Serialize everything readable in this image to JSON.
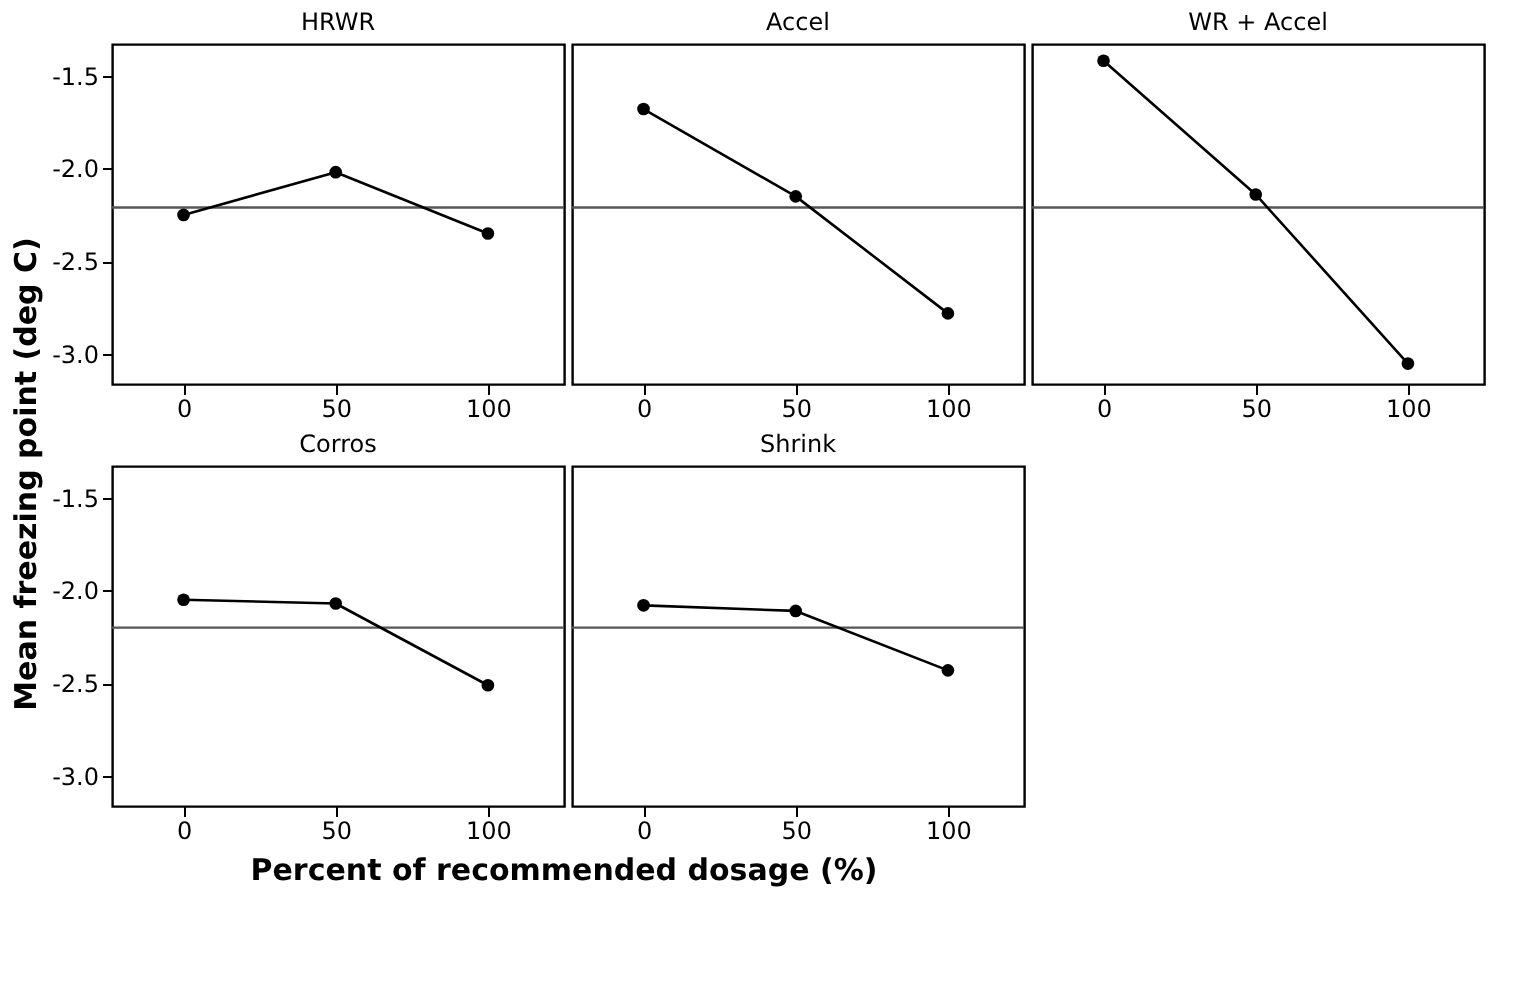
{
  "chart_data": [
    {
      "type": "line",
      "title": "HRWR",
      "ylabel": "Mean freezing point (deg C)",
      "x": [
        0,
        50,
        100
      ],
      "series": [
        {
          "color": "#000000",
          "values": [
            -2.25,
            -2.02,
            -2.35
          ]
        }
      ],
      "xlim": [
        -23.5,
        125
      ],
      "xticks": [
        0,
        50,
        100
      ],
      "ylim": [
        -3.16,
        -1.33
      ],
      "yticks": [
        {
          "value": -3,
          "label": "-3.0"
        },
        {
          "value": -2.5,
          "label": "-2.5"
        },
        {
          "value": -2,
          "label": "-2.0"
        },
        {
          "value": -1.5,
          "label": "-1.5"
        }
      ],
      "ref_lines": [
        {
          "axis": "y",
          "value": -2.21,
          "color": "#555555"
        }
      ],
      "marker": "circle",
      "line_style": "solid",
      "grid": false
    },
    {
      "type": "line",
      "title": "Accel",
      "x": [
        0,
        50,
        100
      ],
      "series": [
        {
          "color": "#000000",
          "values": [
            -1.68,
            -2.15,
            -2.78
          ]
        }
      ],
      "xlim": [
        -23.5,
        125
      ],
      "xticks": [
        0,
        50,
        100
      ],
      "ylim": [
        -3.16,
        -1.33
      ],
      "ref_lines": [
        {
          "axis": "y",
          "value": -2.21,
          "color": "#555555"
        }
      ],
      "marker": "circle",
      "line_style": "solid",
      "grid": false,
      "tick_labels": "x"
    },
    {
      "type": "line",
      "title": "WR + Accel",
      "x": [
        0,
        50,
        100
      ],
      "series": [
        {
          "color": "#000000",
          "values": [
            -1.42,
            -2.14,
            -3.05
          ]
        }
      ],
      "xlim": [
        -23.5,
        125
      ],
      "xticks": [
        0,
        50,
        100
      ],
      "ylim": [
        -3.16,
        -1.33
      ],
      "ref_lines": [
        {
          "axis": "y",
          "value": -2.21,
          "color": "#555555"
        }
      ],
      "marker": "circle",
      "line_style": "solid",
      "grid": false,
      "tick_labels": "x"
    },
    {
      "type": "line",
      "title": "Corros",
      "xlabel": "Percent of recommended dosage (%)",
      "x": [
        0,
        50,
        100
      ],
      "series": [
        {
          "color": "#000000",
          "values": [
            -2.05,
            -2.07,
            -2.51
          ]
        }
      ],
      "xlim": [
        -23.5,
        125
      ],
      "xticks": [
        0,
        50,
        100
      ],
      "ylim": [
        -3.16,
        -1.33
      ],
      "yticks": [
        {
          "value": -3,
          "label": "-3.0"
        },
        {
          "value": -2.5,
          "label": "-2.5"
        },
        {
          "value": -2,
          "label": "-2.0"
        },
        {
          "value": -1.5,
          "label": "-1.5"
        }
      ],
      "ref_lines": [
        {
          "axis": "y",
          "value": -2.2,
          "color": "#555555"
        }
      ],
      "marker": "circle",
      "line_style": "solid",
      "grid": false
    },
    {
      "type": "line",
      "title": "Shrink",
      "x": [
        0,
        50,
        100
      ],
      "series": [
        {
          "color": "#000000",
          "values": [
            -2.08,
            -2.11,
            -2.43
          ]
        }
      ],
      "xlim": [
        -23.5,
        125
      ],
      "xticks": [
        0,
        50,
        100
      ],
      "ylim": [
        -3.16,
        -1.33
      ],
      "ref_lines": [
        {
          "axis": "y",
          "value": -2.2,
          "color": "#555555"
        }
      ],
      "marker": "circle",
      "line_style": "solid",
      "grid": false,
      "tick_labels": "x"
    }
  ]
}
